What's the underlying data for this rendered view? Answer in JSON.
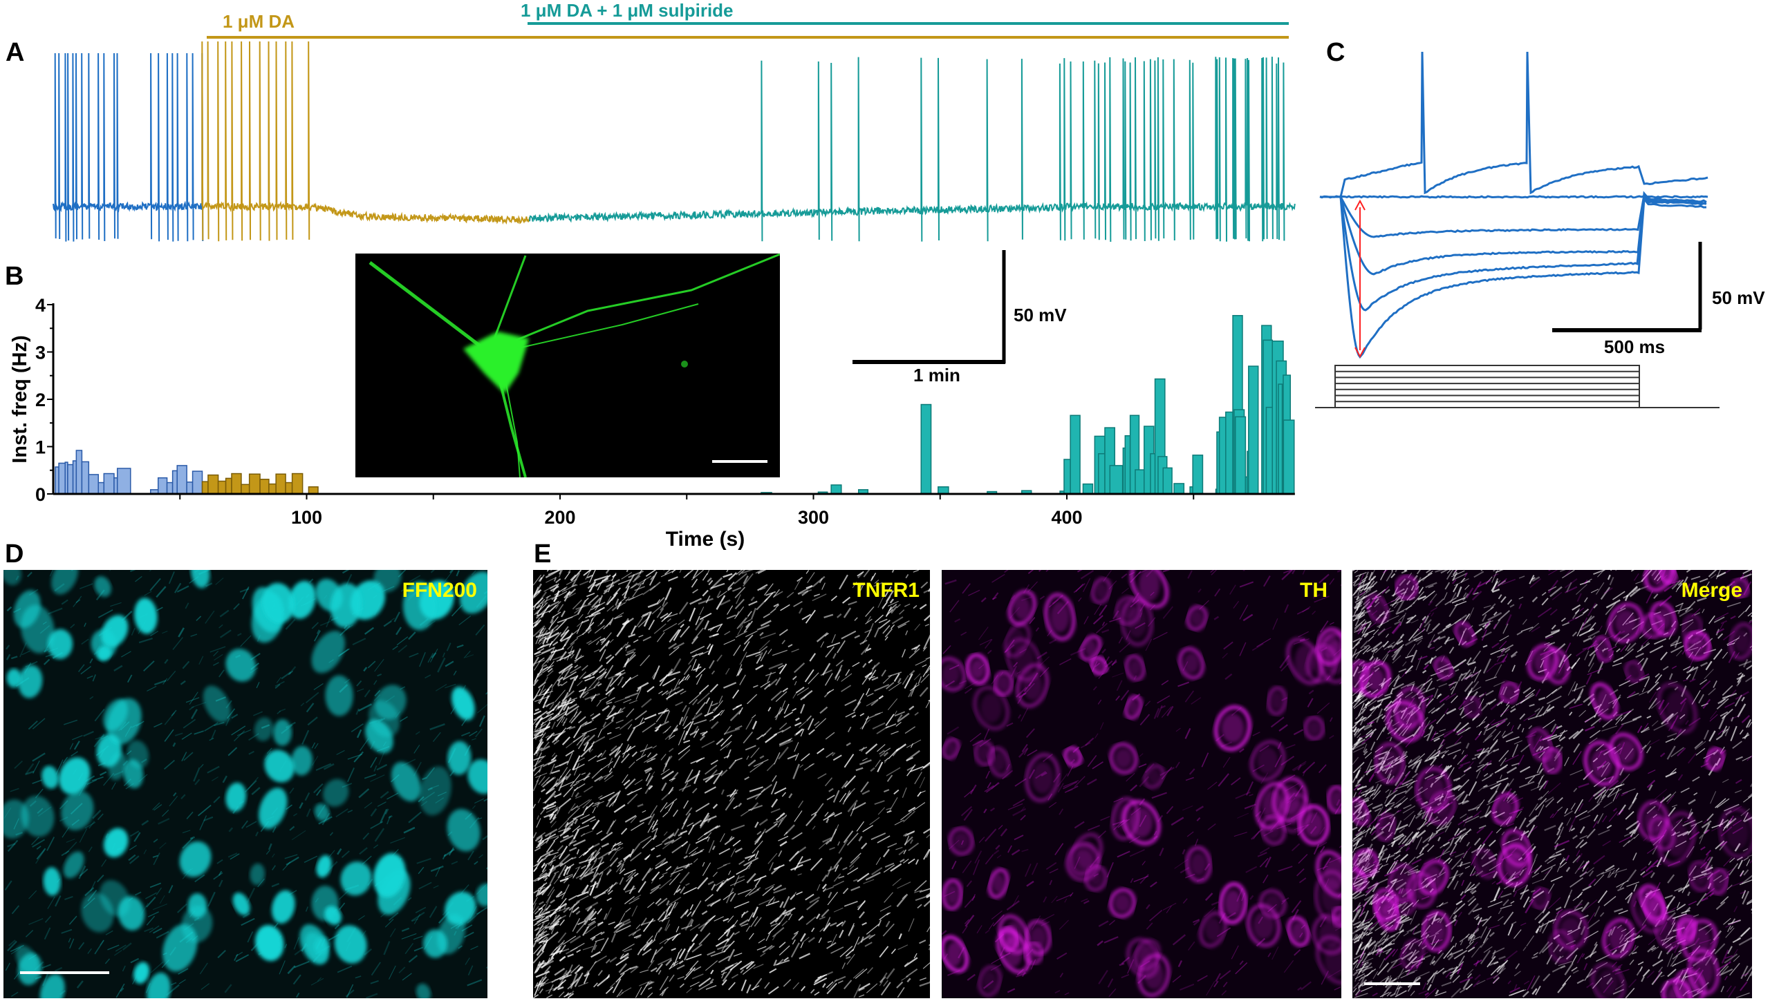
{
  "panel_letters": {
    "a": "A",
    "b": "B",
    "c": "C",
    "d": "D",
    "e": "E"
  },
  "panel_a": {
    "drug_labels": {
      "da": "1 μM DA",
      "da_sulpiride": "1 μM DA + 1 μM sulpiride"
    },
    "colors": {
      "control": "#1f6fc4",
      "da": "#c39718",
      "da_sulpiride": "#169b98"
    },
    "scale_voltage": "50 mV",
    "scale_time": "1 min"
  },
  "panel_c": {
    "trace_color": "#1f6fc4",
    "arrow_color": "#ff2020",
    "scale_voltage": "50 mV",
    "scale_time": "500 ms"
  },
  "chart_data": {
    "type": "bar",
    "xlabel": "Time (s)",
    "ylabel": "Inst. freq (Hz)",
    "xlim": [
      0,
      490
    ],
    "ylim": [
      0,
      4
    ],
    "xticks": [
      100,
      200,
      300,
      400
    ],
    "yticks": [
      0,
      1,
      2,
      3,
      4
    ],
    "grid": false,
    "series": [
      {
        "color": "#8fb0e3",
        "edge": "#2a5aa8",
        "bins": [
          [
            0.8,
            2.2,
            0.57
          ],
          [
            2.2,
            4.7,
            0.65
          ],
          [
            4.7,
            5.7,
            0.67
          ],
          [
            5.7,
            7.8,
            0.62
          ],
          [
            7.8,
            9.1,
            0.7
          ],
          [
            9.1,
            11.3,
            0.92
          ],
          [
            11.3,
            14,
            0.68
          ],
          [
            14,
            17.8,
            0.41
          ],
          [
            17.8,
            20,
            0.24
          ],
          [
            20,
            24,
            0.43
          ],
          [
            24,
            25.3,
            0.34
          ],
          [
            25.3,
            30.5,
            0.54
          ],
          [
            38.4,
            41.4,
            0.09
          ],
          [
            41.4,
            44.9,
            0.34
          ],
          [
            44.9,
            47.1,
            0.24
          ],
          [
            47.1,
            48.9,
            0.49
          ],
          [
            48.9,
            52.7,
            0.6
          ],
          [
            52.7,
            55,
            0.25
          ],
          [
            55,
            58.8,
            0.48
          ]
        ]
      },
      {
        "color": "#c39718",
        "edge": "#7a5c08",
        "bins": [
          [
            58.8,
            61.1,
            0.26
          ],
          [
            61.1,
            65.1,
            0.4
          ],
          [
            65.1,
            68.1,
            0.27
          ],
          [
            68.1,
            70.4,
            0.33
          ],
          [
            70.4,
            74.2,
            0.43
          ],
          [
            74.2,
            77.4,
            0.2
          ],
          [
            77.4,
            81.6,
            0.42
          ],
          [
            81.6,
            85.1,
            0.31
          ],
          [
            85.1,
            87.9,
            0.21
          ],
          [
            87.9,
            91.7,
            0.42
          ],
          [
            91.7,
            94.3,
            0.24
          ],
          [
            94.3,
            98.4,
            0.43
          ],
          [
            100.8,
            104.5,
            0.15
          ]
        ]
      },
      {
        "color": "#20b5b0",
        "edge": "#0d7a77",
        "bins": [
          [
            279.4,
            283.5,
            0.03
          ],
          [
            301.9,
            305.5,
            0.04
          ],
          [
            307,
            311,
            0.19
          ],
          [
            317.8,
            321.5,
            0.09
          ],
          [
            342.5,
            346.4,
            1.89
          ],
          [
            349.2,
            353.3,
            0.15
          ],
          [
            368.6,
            372.3,
            0.05
          ],
          [
            382.2,
            386,
            0.07
          ],
          [
            397.3,
            398.9,
            0.06
          ],
          [
            398.9,
            401.4,
            0.73
          ],
          [
            401.4,
            405.2,
            1.66
          ],
          [
            406.4,
            410.2,
            0.21
          ],
          [
            411,
            415,
            1.22
          ],
          [
            412.5,
            415,
            0.85
          ],
          [
            415,
            418.9,
            1.4
          ],
          [
            417,
            422,
            0.6
          ],
          [
            422.2,
            423.8,
            0.97
          ],
          [
            423,
            425,
            1.23
          ],
          [
            425,
            428.5,
            1.66
          ],
          [
            427,
            430.5,
            0.51
          ],
          [
            430.5,
            434.3,
            1.43
          ],
          [
            433,
            435,
            0.85
          ],
          [
            434.8,
            438.7,
            2.43
          ],
          [
            436,
            439.5,
            0.79
          ],
          [
            438,
            441.5,
            0.55
          ],
          [
            442.3,
            446.2,
            0.22
          ],
          [
            448.6,
            449.7,
            0.15
          ],
          [
            449.7,
            453.6,
            0.82
          ],
          [
            458.8,
            460,
            0.1
          ],
          [
            459.2,
            461.5,
            1.31
          ],
          [
            460.2,
            463,
            1.62
          ],
          [
            462.7,
            465.5,
            1.73
          ],
          [
            465.5,
            469.3,
            3.77
          ],
          [
            466,
            470,
            1.78
          ],
          [
            466.5,
            470.5,
            1.63
          ],
          [
            470.5,
            472,
            0.36
          ],
          [
            471.2,
            472.5,
            0.9
          ],
          [
            471.7,
            475.5,
            2.7
          ],
          [
            476.9,
            480.7,
            3.56
          ],
          [
            477.5,
            481.1,
            3.25
          ],
          [
            478.7,
            482,
            1.83
          ],
          [
            481.1,
            485.4,
            3.23
          ],
          [
            482.7,
            486.6,
            2.81
          ],
          [
            483.5,
            485,
            2.32
          ],
          [
            485.4,
            488.2,
            2.51
          ],
          [
            485.5,
            489.7,
            1.56
          ]
        ]
      }
    ]
  },
  "micrographs": {
    "d": {
      "label": "FFN200",
      "color": "#19d6d6"
    },
    "e_tnfr1": {
      "label": "TNFR1",
      "color": "#ffffff"
    },
    "e_th": {
      "label": "TH",
      "color": "#e21ee8"
    },
    "e_merge": {
      "label": "Merge"
    },
    "label_color": "#ffff00"
  }
}
